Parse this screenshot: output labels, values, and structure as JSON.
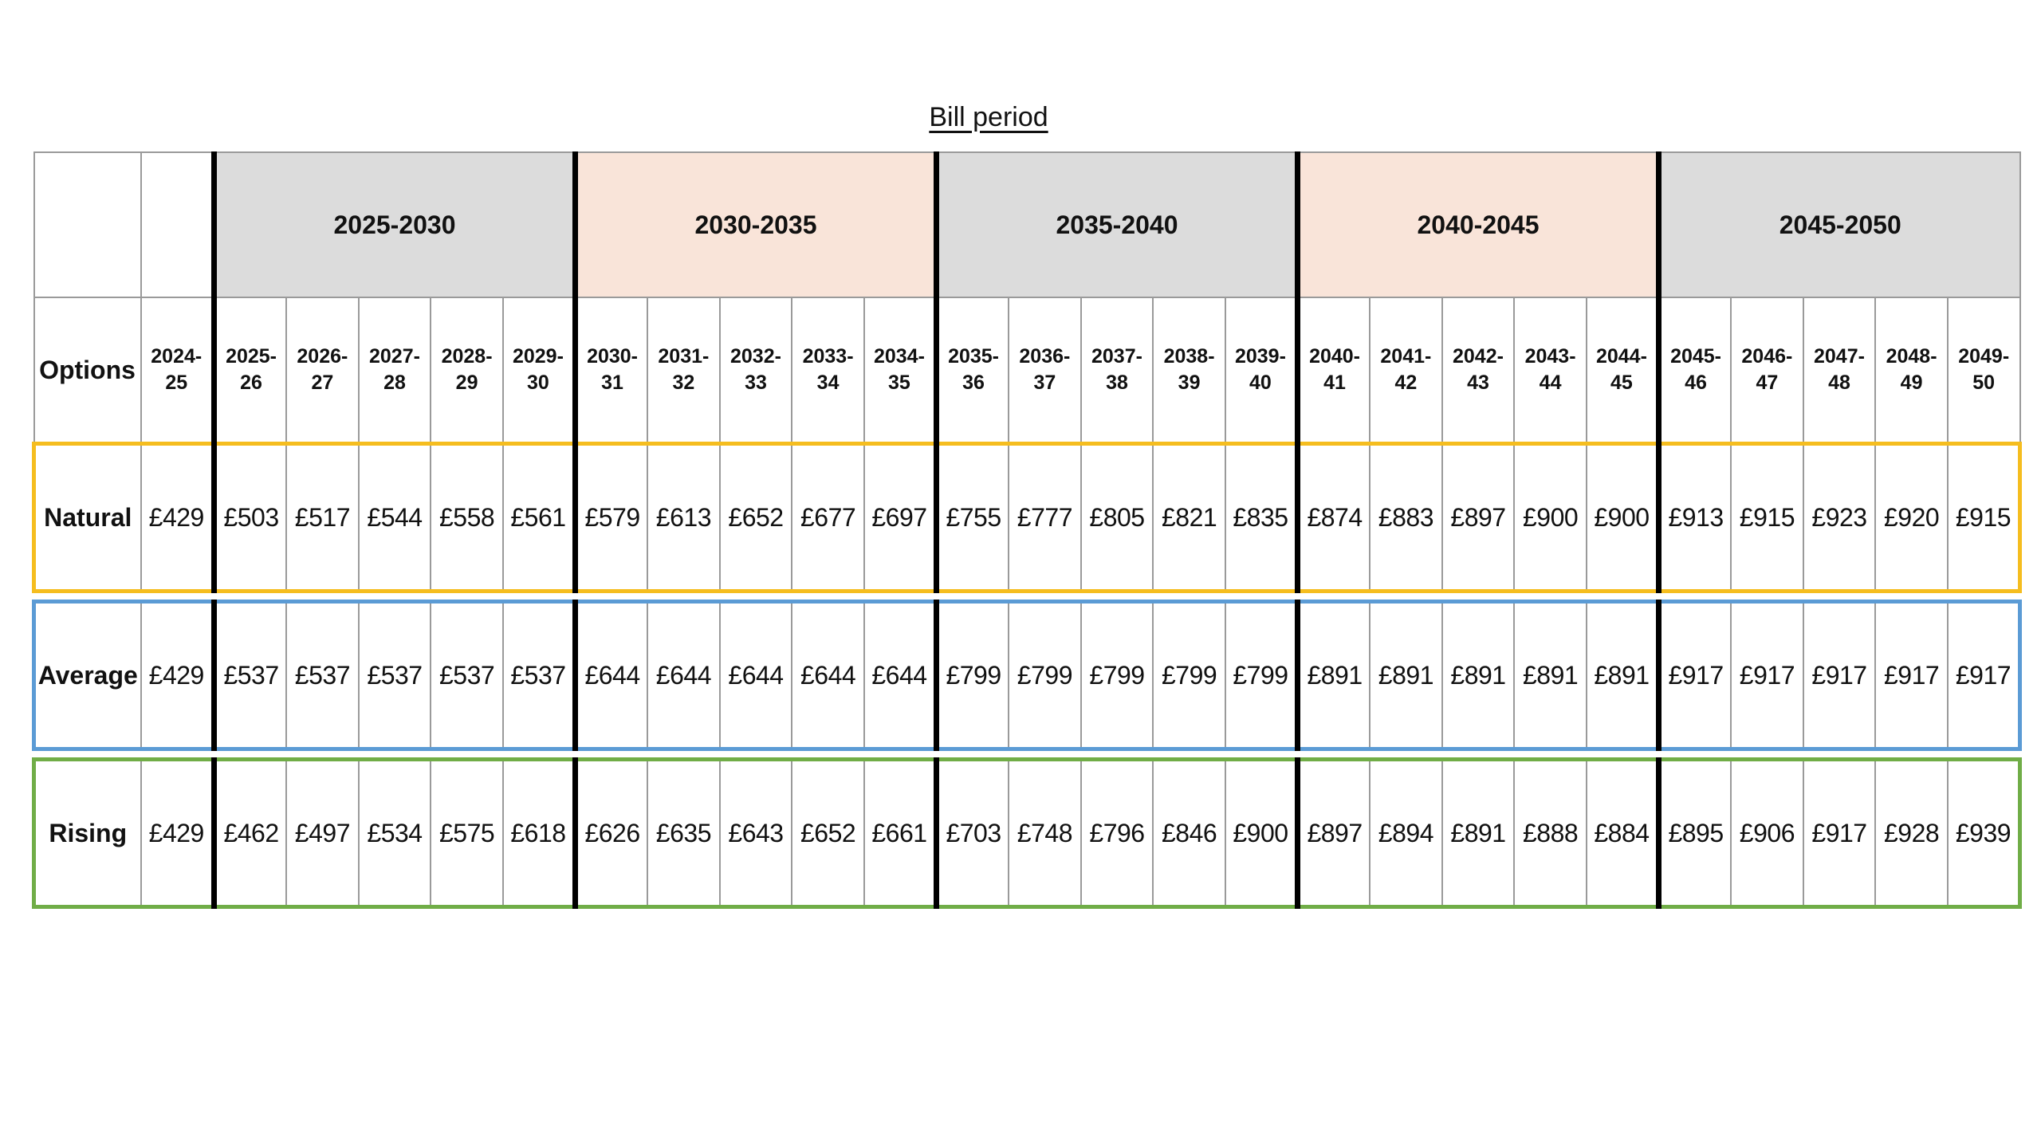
{
  "title": "Bill period",
  "table": {
    "options_header": "Options",
    "periods": [
      {
        "label": "2025-2030",
        "color": "#dcdcdc"
      },
      {
        "label": "2030-2035",
        "color": "#f9e4d9"
      },
      {
        "label": "2035-2040",
        "color": "#dcdcdc"
      },
      {
        "label": "2040-2045",
        "color": "#f9e4d9"
      },
      {
        "label": "2045-2050",
        "color": "#dcdcdc"
      }
    ],
    "years": [
      [
        "2024-",
        "25"
      ],
      [
        "2025-",
        "26"
      ],
      [
        "2026-",
        "27"
      ],
      [
        "2027-",
        "28"
      ],
      [
        "2028-",
        "29"
      ],
      [
        "2029-",
        "30"
      ],
      [
        "2030-",
        "31"
      ],
      [
        "2031-",
        "32"
      ],
      [
        "2032-",
        "33"
      ],
      [
        "2033-",
        "34"
      ],
      [
        "2034-",
        "35"
      ],
      [
        "2035-",
        "36"
      ],
      [
        "2036-",
        "37"
      ],
      [
        "2037-",
        "38"
      ],
      [
        "2038-",
        "39"
      ],
      [
        "2039-",
        "40"
      ],
      [
        "2040-",
        "41"
      ],
      [
        "2041-",
        "42"
      ],
      [
        "2042-",
        "43"
      ],
      [
        "2043-",
        "44"
      ],
      [
        "2044-",
        "45"
      ],
      [
        "2045-",
        "46"
      ],
      [
        "2046-",
        "47"
      ],
      [
        "2047-",
        "48"
      ],
      [
        "2048-",
        "49"
      ],
      [
        "2049-",
        "50"
      ]
    ],
    "rows": [
      {
        "label": "Natural",
        "key": "natural",
        "outline": "#f5bd1f",
        "values": [
          "£429",
          "£503",
          "£517",
          "£544",
          "£558",
          "£561",
          "£579",
          "£613",
          "£652",
          "£677",
          "£697",
          "£755",
          "£777",
          "£805",
          "£821",
          "£835",
          "£874",
          "£883",
          "£897",
          "£900",
          "£900",
          "£913",
          "£915",
          "£923",
          "£920",
          "£915"
        ]
      },
      {
        "label": "Average",
        "key": "average",
        "outline": "#5b9bd5",
        "values": [
          "£429",
          "£537",
          "£537",
          "£537",
          "£537",
          "£537",
          "£644",
          "£644",
          "£644",
          "£644",
          "£644",
          "£799",
          "£799",
          "£799",
          "£799",
          "£799",
          "£891",
          "£891",
          "£891",
          "£891",
          "£891",
          "£917",
          "£917",
          "£917",
          "£917",
          "£917"
        ]
      },
      {
        "label": "Rising",
        "key": "rising",
        "outline": "#70ad47",
        "values": [
          "£429",
          "£462",
          "£497",
          "£534",
          "£575",
          "£618",
          "£626",
          "£635",
          "£643",
          "£652",
          "£661",
          "£703",
          "£748",
          "£796",
          "£846",
          "£900",
          "£897",
          "£894",
          "£891",
          "£888",
          "£884",
          "£895",
          "£906",
          "£917",
          "£928",
          "£939"
        ]
      }
    ]
  }
}
